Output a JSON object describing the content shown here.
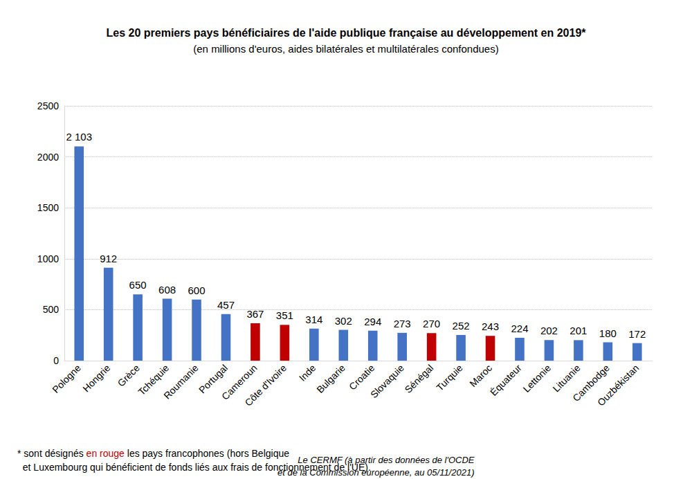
{
  "chart_data": {
    "type": "bar",
    "title": "Les 20 premiers pays bénéficiaires de l'aide publique française au développement en 2019*",
    "subtitle": "(en millions d'euros, aides bilatérales et multilatérales confondues)",
    "categories": [
      "Pologne",
      "Hongrie",
      "Grèce",
      "Tchéquie",
      "Roumanie",
      "Portugal",
      "Cameroun",
      "Côte d'Ivoire",
      "Inde",
      "Bulgarie",
      "Croatie",
      "Slovaquie",
      "Sénégal",
      "Turquie",
      "Maroc",
      "Équateur",
      "Lettonie",
      "Lituanie",
      "Cambodge",
      "Ouzbékistan"
    ],
    "values": [
      2103,
      912,
      650,
      608,
      600,
      457,
      367,
      351,
      314,
      302,
      294,
      273,
      270,
      252,
      243,
      224,
      202,
      201,
      180,
      172
    ],
    "value_labels": [
      "2 103",
      "912",
      "650",
      "608",
      "600",
      "457",
      "367",
      "351",
      "314",
      "302",
      "294",
      "273",
      "270",
      "252",
      "243",
      "224",
      "202",
      "201",
      "180",
      "172"
    ],
    "colors": [
      "#4472c4",
      "#4472c4",
      "#4472c4",
      "#4472c4",
      "#4472c4",
      "#4472c4",
      "#c00000",
      "#c00000",
      "#4472c4",
      "#4472c4",
      "#4472c4",
      "#4472c4",
      "#c00000",
      "#4472c4",
      "#c00000",
      "#4472c4",
      "#4472c4",
      "#4472c4",
      "#4472c4",
      "#4472c4"
    ],
    "ylim": [
      0,
      2500
    ],
    "yticks": [
      0,
      500,
      1000,
      1500,
      2000,
      2500
    ],
    "grid": true,
    "data_labels": true,
    "footnote": {
      "before": "* sont désignés ",
      "highlight": "en rouge",
      "after": " les pays francophones (hors Belgique",
      "line2": "  et Luxembourg qui bénéficient de fonds liés aux frais de fonctionnement de l'UE)."
    },
    "source": [
      "Le CERMF (à partir des données de l'OCDE",
      "et de la Commission européenne, au 05/11/2021)"
    ]
  }
}
